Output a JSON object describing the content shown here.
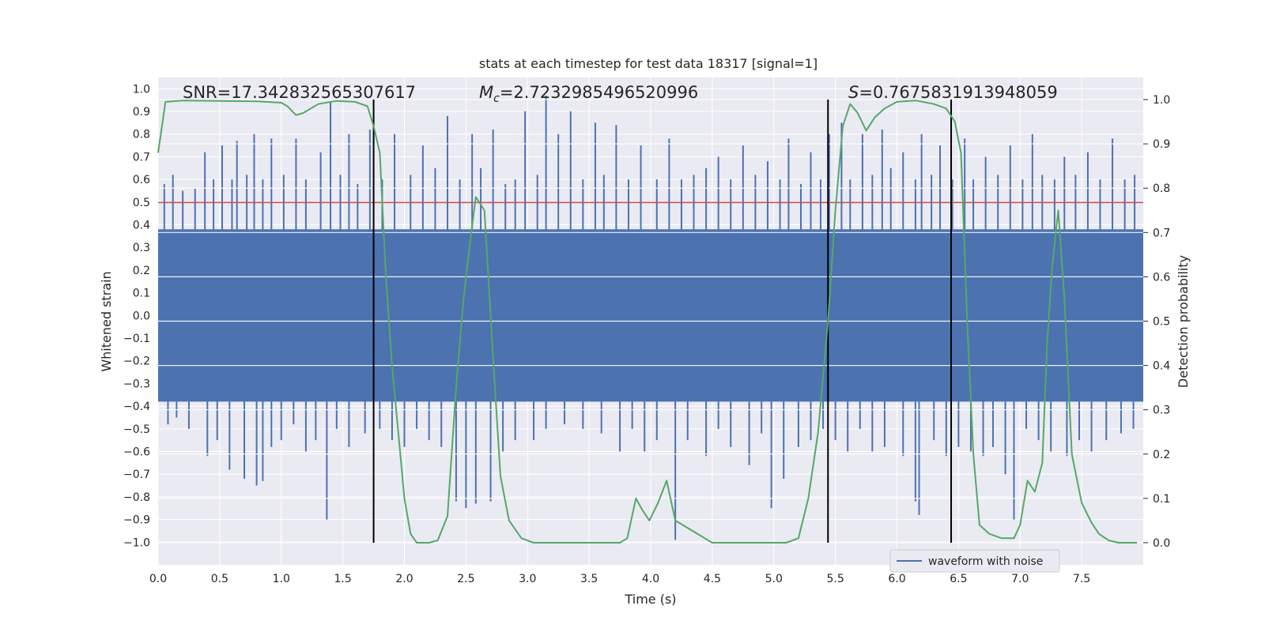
{
  "chart_data": {
    "type": "line",
    "title": "stats at each timestep for test data 18317 [signal=1]",
    "xlabel": "Time (s)",
    "ylabel_left": "Whitened strain",
    "ylabel_right": "Detection probability",
    "xlim": [
      0.0,
      8.0
    ],
    "ylim_left": [
      -1.1,
      1.05
    ],
    "ylim_right": [
      -0.05,
      1.05
    ],
    "x_ticks": [
      "0.0",
      "0.5",
      "1.0",
      "1.5",
      "2.0",
      "2.5",
      "3.0",
      "3.5",
      "4.0",
      "4.5",
      "5.0",
      "5.5",
      "6.0",
      "6.5",
      "7.0",
      "7.5"
    ],
    "y_left_ticks": [
      "1.0",
      "0.9",
      "0.8",
      "0.7",
      "0.6",
      "0.5",
      "0.4",
      "0.3",
      "0.2",
      "0.1",
      "0.0",
      "-0.1",
      "-0.2",
      "-0.3",
      "-0.4",
      "-0.5",
      "-0.6",
      "-0.7",
      "-0.8",
      "-0.9",
      "-1.0"
    ],
    "y_right_ticks": [
      "1.0",
      "0.9",
      "0.8",
      "0.7",
      "0.6",
      "0.5",
      "0.4",
      "0.3",
      "0.2",
      "0.1",
      "0.0"
    ],
    "annotations": {
      "snr": "SNR=17.342832565307617",
      "mc_symbol": "M",
      "mc_sub": "c",
      "mc_value": "=2.7232985496520996",
      "s_symbol": "S",
      "s_value": "=0.7675831913948059"
    },
    "threshold": 0.7675831913948059,
    "threshold_color": "#c44e52",
    "vertical_lines_s": [
      1.75,
      5.44,
      6.44
    ],
    "waveform": {
      "name": "waveform with noise",
      "color": "#4c72b0",
      "core_band": [
        -0.38,
        0.38
      ],
      "spikes": [
        [
          0.05,
          0.58
        ],
        [
          0.12,
          0.62
        ],
        [
          0.2,
          0.55
        ],
        [
          0.3,
          0.56
        ],
        [
          0.38,
          0.72
        ],
        [
          0.45,
          0.6
        ],
        [
          0.52,
          0.75
        ],
        [
          0.6,
          0.6
        ],
        [
          0.64,
          0.77
        ],
        [
          0.72,
          0.62
        ],
        [
          0.78,
          0.8
        ],
        [
          0.85,
          0.6
        ],
        [
          0.92,
          0.78
        ],
        [
          1.02,
          0.62
        ],
        [
          1.12,
          0.78
        ],
        [
          1.2,
          0.6
        ],
        [
          1.32,
          0.72
        ],
        [
          1.4,
          0.94
        ],
        [
          1.48,
          0.62
        ],
        [
          1.55,
          0.8
        ],
        [
          1.62,
          0.58
        ],
        [
          1.72,
          0.82
        ],
        [
          1.82,
          0.6
        ],
        [
          1.92,
          0.8
        ],
        [
          2.05,
          0.62
        ],
        [
          2.15,
          0.75
        ],
        [
          2.25,
          0.65
        ],
        [
          2.35,
          0.88
        ],
        [
          2.45,
          0.6
        ],
        [
          2.55,
          0.8
        ],
        [
          2.62,
          0.65
        ],
        [
          2.72,
          0.82
        ],
        [
          2.82,
          0.58
        ],
        [
          2.9,
          0.6
        ],
        [
          2.98,
          0.9
        ],
        [
          3.08,
          0.62
        ],
        [
          3.15,
          0.97
        ],
        [
          3.25,
          0.8
        ],
        [
          3.35,
          0.9
        ],
        [
          3.45,
          0.6
        ],
        [
          3.55,
          0.85
        ],
        [
          3.62,
          0.62
        ],
        [
          3.72,
          0.84
        ],
        [
          3.82,
          0.6
        ],
        [
          3.92,
          0.75
        ],
        [
          4.05,
          0.6
        ],
        [
          4.15,
          0.78
        ],
        [
          4.25,
          0.6
        ],
        [
          4.35,
          0.62
        ],
        [
          4.45,
          0.65
        ],
        [
          4.55,
          0.7
        ],
        [
          4.65,
          0.6
        ],
        [
          4.75,
          0.75
        ],
        [
          4.85,
          0.62
        ],
        [
          4.95,
          0.68
        ],
        [
          5.05,
          0.6
        ],
        [
          5.12,
          0.78
        ],
        [
          5.22,
          0.58
        ],
        [
          5.3,
          0.72
        ],
        [
          5.38,
          0.6
        ],
        [
          5.45,
          0.8
        ],
        [
          5.55,
          0.85
        ],
        [
          5.62,
          0.6
        ],
        [
          5.72,
          0.8
        ],
        [
          5.8,
          0.62
        ],
        [
          5.88,
          0.82
        ],
        [
          5.95,
          0.65
        ],
        [
          6.05,
          0.72
        ],
        [
          6.15,
          0.6
        ],
        [
          6.2,
          0.8
        ],
        [
          6.28,
          0.62
        ],
        [
          6.35,
          0.75
        ],
        [
          6.45,
          0.6
        ],
        [
          6.55,
          0.78
        ],
        [
          6.62,
          0.6
        ],
        [
          6.72,
          0.7
        ],
        [
          6.82,
          0.62
        ],
        [
          6.92,
          0.75
        ],
        [
          7.02,
          0.6
        ],
        [
          7.1,
          0.8
        ],
        [
          7.18,
          0.62
        ],
        [
          7.28,
          0.6
        ],
        [
          7.36,
          0.7
        ],
        [
          7.45,
          0.62
        ],
        [
          7.55,
          0.72
        ],
        [
          7.65,
          0.6
        ],
        [
          7.75,
          0.78
        ],
        [
          7.85,
          0.6
        ],
        [
          7.93,
          0.62
        ],
        [
          0.08,
          -0.48
        ],
        [
          0.15,
          -0.45
        ],
        [
          0.25,
          -0.5
        ],
        [
          0.4,
          -0.62
        ],
        [
          0.48,
          -0.55
        ],
        [
          0.58,
          -0.68
        ],
        [
          0.7,
          -0.72
        ],
        [
          0.8,
          -0.75
        ],
        [
          0.85,
          -0.73
        ],
        [
          0.92,
          -0.58
        ],
        [
          1.0,
          -0.55
        ],
        [
          1.1,
          -0.48
        ],
        [
          1.2,
          -0.6
        ],
        [
          1.28,
          -0.55
        ],
        [
          1.37,
          -0.9
        ],
        [
          1.45,
          -0.5
        ],
        [
          1.55,
          -0.58
        ],
        [
          1.68,
          -0.52
        ],
        [
          1.8,
          -0.5
        ],
        [
          1.9,
          -0.55
        ],
        [
          2.0,
          -0.58
        ],
        [
          2.1,
          -0.5
        ],
        [
          2.2,
          -0.55
        ],
        [
          2.3,
          -0.58
        ],
        [
          2.42,
          -0.82
        ],
        [
          2.5,
          -0.85
        ],
        [
          2.58,
          -0.83
        ],
        [
          2.7,
          -0.82
        ],
        [
          2.8,
          -0.6
        ],
        [
          2.9,
          -0.55
        ],
        [
          3.05,
          -0.55
        ],
        [
          3.15,
          -0.5
        ],
        [
          3.3,
          -0.48
        ],
        [
          3.45,
          -0.5
        ],
        [
          3.6,
          -0.52
        ],
        [
          3.75,
          -0.6
        ],
        [
          3.85,
          -0.5
        ],
        [
          3.95,
          -0.6
        ],
        [
          4.05,
          -0.55
        ],
        [
          4.2,
          -0.99
        ],
        [
          4.3,
          -0.55
        ],
        [
          4.45,
          -0.62
        ],
        [
          4.55,
          -0.5
        ],
        [
          4.65,
          -0.58
        ],
        [
          4.8,
          -0.66
        ],
        [
          4.9,
          -0.52
        ],
        [
          4.98,
          -0.85
        ],
        [
          5.08,
          -0.72
        ],
        [
          5.2,
          -0.58
        ],
        [
          5.3,
          -0.55
        ],
        [
          5.4,
          -0.5
        ],
        [
          5.5,
          -0.55
        ],
        [
          5.6,
          -0.6
        ],
        [
          5.7,
          -0.5
        ],
        [
          5.8,
          -0.6
        ],
        [
          5.9,
          -0.58
        ],
        [
          6.05,
          -0.62
        ],
        [
          6.15,
          -0.82
        ],
        [
          6.18,
          -0.88
        ],
        [
          6.3,
          -0.55
        ],
        [
          6.4,
          -0.62
        ],
        [
          6.5,
          -0.58
        ],
        [
          6.6,
          -0.6
        ],
        [
          6.7,
          -0.62
        ],
        [
          6.78,
          -0.58
        ],
        [
          6.88,
          -0.7
        ],
        [
          6.95,
          -0.9
        ],
        [
          7.05,
          -0.5
        ],
        [
          7.15,
          -0.55
        ],
        [
          7.25,
          -0.6
        ],
        [
          7.38,
          -0.62
        ],
        [
          7.48,
          -0.55
        ],
        [
          7.58,
          -0.6
        ],
        [
          7.7,
          -0.55
        ],
        [
          7.82,
          -0.52
        ],
        [
          7.92,
          -0.5
        ]
      ]
    },
    "probability": {
      "color": "#55a868",
      "x": [
        0.0,
        0.06,
        0.2,
        0.5,
        0.8,
        1.0,
        1.05,
        1.12,
        1.18,
        1.3,
        1.45,
        1.6,
        1.7,
        1.75,
        1.8,
        1.85,
        1.9,
        2.0,
        2.05,
        2.1,
        2.2,
        2.27,
        2.35,
        2.42,
        2.48,
        2.53,
        2.58,
        2.65,
        2.72,
        2.78,
        2.85,
        2.95,
        3.05,
        3.3,
        3.6,
        3.75,
        3.81,
        3.88,
        3.93,
        3.99,
        4.06,
        4.13,
        4.2,
        4.5,
        4.9,
        5.1,
        5.2,
        5.28,
        5.36,
        5.44,
        5.5,
        5.56,
        5.62,
        5.68,
        5.75,
        5.82,
        5.9,
        6.0,
        6.15,
        6.3,
        6.4,
        6.47,
        6.52,
        6.57,
        6.62,
        6.67,
        6.75,
        6.85,
        6.95,
        7.0,
        7.06,
        7.12,
        7.18,
        7.22,
        7.26,
        7.31,
        7.36,
        7.42,
        7.5,
        7.58,
        7.64,
        7.72,
        7.8,
        7.95
      ],
      "y": [
        0.88,
        0.995,
        0.998,
        0.997,
        0.996,
        0.993,
        0.985,
        0.965,
        0.97,
        0.99,
        0.997,
        0.995,
        0.985,
        0.94,
        0.88,
        0.6,
        0.4,
        0.1,
        0.02,
        0.0,
        0.0,
        0.005,
        0.06,
        0.35,
        0.55,
        0.67,
        0.78,
        0.75,
        0.42,
        0.15,
        0.05,
        0.01,
        0.0,
        0.0,
        0.0,
        0.0,
        0.01,
        0.1,
        0.075,
        0.05,
        0.09,
        0.14,
        0.05,
        0.0,
        0.0,
        0.0,
        0.01,
        0.1,
        0.25,
        0.5,
        0.75,
        0.94,
        0.99,
        0.97,
        0.93,
        0.96,
        0.98,
        0.995,
        0.998,
        0.99,
        0.98,
        0.95,
        0.88,
        0.5,
        0.2,
        0.04,
        0.02,
        0.01,
        0.01,
        0.04,
        0.14,
        0.115,
        0.18,
        0.45,
        0.62,
        0.75,
        0.55,
        0.2,
        0.09,
        0.045,
        0.02,
        0.005,
        0.0,
        0.0
      ]
    },
    "legend": {
      "position": "lower-right",
      "label": "waveform with noise"
    },
    "grid": true
  }
}
